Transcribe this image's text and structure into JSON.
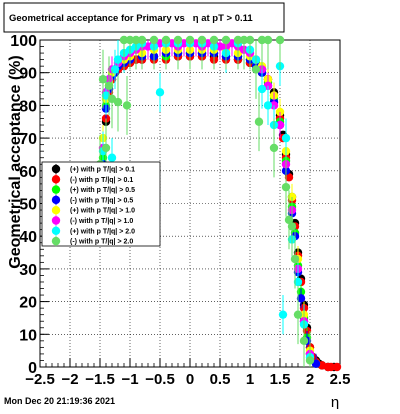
{
  "title": "Geometrical acceptance for Primary vs   η at pT > 0.11",
  "timestamp": "Mon Dec 20 21:19:36 2021",
  "colors": {
    "black": "#000000",
    "red": "#ff0000",
    "green": "#00ff00",
    "blue": "#0000ff",
    "yellow": "#ffff00",
    "magenta": "#ff00ff",
    "cyan": "#00ffff",
    "lightgreen": "#66dd66"
  },
  "chart_data": {
    "type": "scatter",
    "title": "Geometrical acceptance for Primary vs   η at pT > 0.11",
    "xlabel": "η",
    "ylabel": "Geometrical acceptance (%)",
    "xlim": [
      -2.5,
      2.5
    ],
    "ylim": [
      0,
      100
    ],
    "xticks": [
      "−2.5",
      "−2",
      "−1.5",
      "−1",
      "−0.5",
      "0",
      "0.5",
      "1",
      "1.5",
      "2",
      "2.5"
    ],
    "yticks": [
      "0",
      "10",
      "20",
      "30",
      "40",
      "50",
      "60",
      "70",
      "80",
      "90",
      "100"
    ],
    "grid": true,
    "legend_position": "left-middle",
    "series": [
      {
        "name": "(+) with p T/|q| > 0.1",
        "color": "#000000",
        "yerr": 1.0,
        "x": [
          -1.45,
          -1.4,
          -1.35,
          -1.3,
          -1.25,
          -1.2,
          -1.1,
          -1.0,
          -0.9,
          -0.8,
          -0.6,
          -0.4,
          -0.2,
          0.0,
          0.2,
          0.4,
          0.6,
          0.8,
          1.0,
          1.1,
          1.2,
          1.3,
          1.4,
          1.5,
          1.55,
          1.6,
          1.65,
          1.7,
          1.75,
          1.8,
          1.85,
          1.9,
          1.95,
          2.0,
          2.05,
          2.1,
          2.15,
          2.2,
          2.3,
          2.4
        ],
        "y": [
          58,
          75,
          85,
          88,
          90,
          91,
          92,
          93,
          94,
          94,
          95,
          95,
          95,
          95,
          95,
          95,
          95,
          94,
          93,
          92,
          91,
          88,
          84,
          77,
          71,
          65,
          59,
          52,
          44,
          35,
          27,
          19,
          12,
          6,
          3,
          2,
          1,
          0.5,
          0,
          0
        ]
      },
      {
        "name": "(-) with p T/|q| > 0.1",
        "color": "#ff0000",
        "yerr": 1.0,
        "x": [
          -1.45,
          -1.4,
          -1.35,
          -1.3,
          -1.25,
          -1.2,
          -1.1,
          -1.0,
          -0.9,
          -0.8,
          -0.6,
          -0.4,
          -0.2,
          0.0,
          0.2,
          0.4,
          0.6,
          0.8,
          1.0,
          1.1,
          1.2,
          1.3,
          1.4,
          1.5,
          1.55,
          1.6,
          1.65,
          1.7,
          1.75,
          1.8,
          1.85,
          1.9,
          1.95,
          2.0,
          2.05,
          2.1,
          2.2,
          2.3,
          2.35,
          2.45
        ],
        "y": [
          60,
          76,
          84,
          88,
          90,
          91,
          92,
          93,
          94,
          94,
          94,
          94,
          95,
          95,
          95,
          94,
          94,
          94,
          93,
          92,
          90,
          88,
          83,
          76,
          70,
          64,
          58,
          51,
          43,
          34,
          26,
          18,
          11,
          6,
          3,
          1.5,
          0.5,
          0,
          0,
          0
        ]
      },
      {
        "name": "(+) with p T/|q| > 0.5",
        "color": "#00ff00",
        "yerr": 3.0,
        "x": [
          -1.45,
          -1.4,
          -1.35,
          -1.3,
          -1.25,
          -1.2,
          -1.1,
          -1.0,
          -0.8,
          -0.6,
          -0.4,
          -0.2,
          0.0,
          0.2,
          0.4,
          0.6,
          0.8,
          1.0,
          1.1,
          1.2,
          1.3,
          1.4,
          1.5,
          1.6,
          1.7,
          1.75,
          1.8,
          1.85,
          1.9,
          1.95,
          2.0,
          2.1
        ],
        "y": [
          64,
          80,
          86,
          89,
          91,
          92,
          93,
          94,
          95,
          95,
          95,
          96,
          96,
          96,
          96,
          95,
          95,
          94,
          93,
          90,
          87,
          82,
          75,
          63,
          49,
          41,
          31,
          23,
          15,
          9,
          4,
          1
        ]
      },
      {
        "name": "(-) with p T/|q| > 0.5",
        "color": "#0000ff",
        "yerr": 3.0,
        "x": [
          -1.45,
          -1.4,
          -1.35,
          -1.3,
          -1.25,
          -1.2,
          -1.1,
          -1.0,
          -0.8,
          -0.6,
          -0.4,
          -0.2,
          0.0,
          0.2,
          0.4,
          0.6,
          0.8,
          1.0,
          1.1,
          1.2,
          1.3,
          1.4,
          1.5,
          1.6,
          1.7,
          1.75,
          1.8,
          1.85,
          1.9,
          1.95,
          2.0,
          2.1
        ],
        "y": [
          62,
          79,
          85,
          89,
          90,
          92,
          93,
          94,
          95,
          95,
          96,
          96,
          96,
          96,
          96,
          95,
          95,
          94,
          92,
          90,
          86,
          81,
          74,
          60,
          47,
          40,
          29,
          21,
          14,
          8,
          4,
          1
        ]
      },
      {
        "name": "(+) with p T/|q| > 1.0",
        "color": "#ffff00",
        "yerr": 4.0,
        "x": [
          -1.45,
          -1.4,
          -1.35,
          -1.3,
          -1.2,
          -1.1,
          -1.0,
          -0.8,
          -0.6,
          -0.4,
          -0.2,
          0.0,
          0.2,
          0.4,
          0.6,
          0.8,
          1.0,
          1.1,
          1.2,
          1.3,
          1.4,
          1.5,
          1.6,
          1.7,
          1.8,
          1.9,
          2.0
        ],
        "y": [
          70,
          82,
          87,
          90,
          93,
          94,
          95,
          96,
          97,
          97,
          97,
          97,
          97,
          97,
          97,
          96,
          95,
          94,
          92,
          88,
          83,
          78,
          66,
          52,
          33,
          16,
          5
        ]
      },
      {
        "name": "(-) with p T/|q| > 1.0",
        "color": "#ff00ff",
        "yerr": 4.0,
        "x": [
          -1.45,
          -1.4,
          -1.35,
          -1.3,
          -1.2,
          -1.1,
          -1.0,
          -0.9,
          -0.8,
          -0.7,
          -0.6,
          -0.5,
          -0.4,
          -0.3,
          -0.2,
          -0.1,
          0.0,
          0.1,
          0.2,
          0.3,
          0.4,
          0.5,
          0.6,
          0.7,
          0.8,
          0.9,
          1.0,
          1.1,
          1.2,
          1.3,
          1.4,
          1.5,
          1.6,
          1.7,
          1.8,
          1.9,
          2.0
        ],
        "y": [
          67,
          84,
          88,
          91,
          93,
          95,
          96,
          97,
          98,
          98,
          99,
          99,
          99,
          99,
          98,
          99,
          99,
          99,
          98,
          99,
          99,
          98,
          98,
          99,
          98,
          97,
          96,
          94,
          91,
          86,
          80,
          74,
          62,
          48,
          30,
          14,
          4
        ]
      },
      {
        "name": "(+) with p T/|q| > 2.0",
        "color": "#00ffff",
        "yerr": 6.0,
        "x": [
          -1.45,
          -1.4,
          -1.3,
          -1.25,
          -1.2,
          -1.1,
          -1.0,
          -0.9,
          -0.8,
          -0.6,
          -0.5,
          -0.4,
          -0.2,
          0.0,
          0.2,
          0.4,
          0.6,
          0.8,
          1.0,
          1.1,
          1.2,
          1.3,
          1.4,
          1.5,
          1.55,
          1.6,
          1.7,
          1.8,
          1.9,
          2.0
        ],
        "y": [
          66,
          83,
          64,
          91,
          94,
          96,
          97,
          98,
          99,
          98,
          84,
          99,
          99,
          99,
          99,
          98,
          96,
          99,
          97,
          94,
          85,
          80,
          74,
          92,
          16,
          70,
          39,
          26,
          13,
          3
        ]
      },
      {
        "name": "(-) with p T/|q| > 2.0",
        "color": "#66dd66",
        "yerr": 9.0,
        "x": [
          -1.5,
          -1.45,
          -1.4,
          -1.35,
          -1.3,
          -1.2,
          -1.1,
          -1.05,
          -1.0,
          -0.9,
          -0.8,
          -0.6,
          -0.4,
          -0.2,
          0.0,
          0.2,
          0.4,
          0.6,
          0.8,
          0.9,
          1.0,
          1.1,
          1.15,
          1.2,
          1.3,
          1.4,
          1.5,
          1.6,
          1.65,
          1.7,
          1.75,
          1.8,
          1.9,
          2.0
        ],
        "y": [
          62,
          88,
          67,
          86,
          82,
          81,
          100,
          80,
          100,
          100,
          100,
          100,
          100,
          100,
          100,
          100,
          100,
          100,
          100,
          100,
          100,
          91,
          75,
          100,
          100,
          67,
          100,
          55,
          45,
          43,
          33,
          16,
          8,
          2
        ]
      }
    ]
  }
}
